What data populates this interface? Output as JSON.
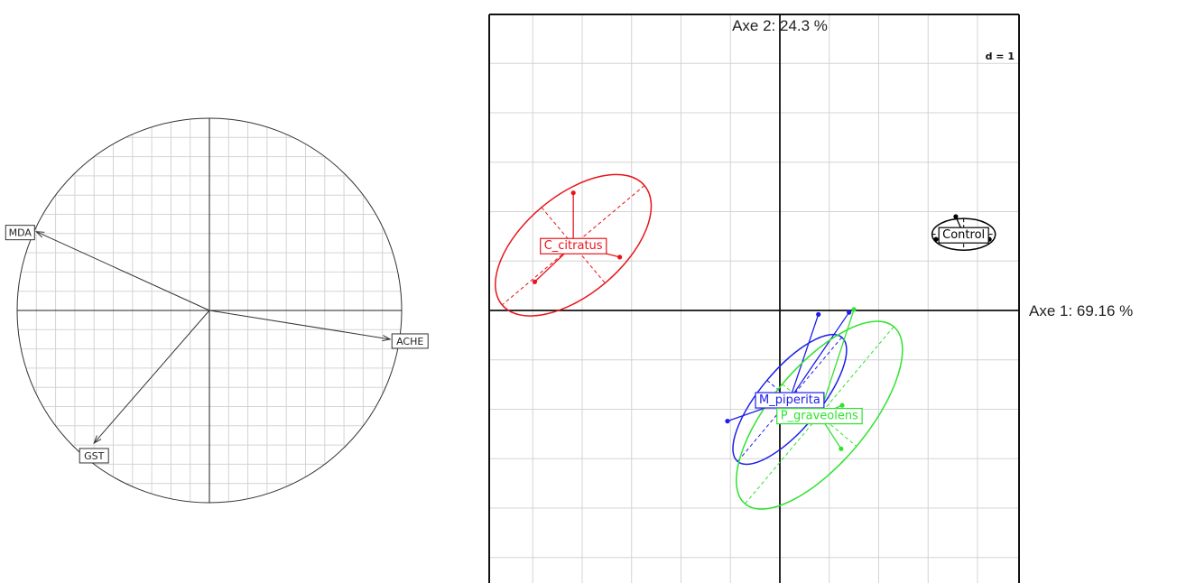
{
  "chart_data": [
    {
      "type": "correlation-circle",
      "grid": true,
      "variables": [
        {
          "name": "MDA",
          "x": -0.9,
          "y": 0.41
        },
        {
          "name": "ACHE",
          "x": 0.94,
          "y": -0.15
        },
        {
          "name": "GST",
          "x": -0.6,
          "y": -0.69
        }
      ]
    },
    {
      "type": "scatter",
      "scale_label": "d = 1",
      "xlabel": "Axe 1: 69.16 %",
      "ylabel": "Axe 2: 24.3 %",
      "grid": true,
      "xlim": [
        -2.9,
        2.4
      ],
      "ylim": [
        -2.7,
        2.6
      ],
      "groups": [
        {
          "name": "C_citratus",
          "color": "#e8141b",
          "center": [
            -2.09,
            0.66
          ],
          "ellipse": {
            "rx": 0.5,
            "ry": 0.94,
            "rotation_deg": 50
          },
          "points": [
            [
              -2.09,
              1.19
            ],
            [
              -1.62,
              0.54
            ],
            [
              -2.48,
              0.29
            ]
          ]
        },
        {
          "name": "Control",
          "color": "#000000",
          "center": [
            1.86,
            0.77
          ],
          "ellipse": {
            "rx": 0.32,
            "ry": 0.16,
            "rotation_deg": 0
          },
          "points": [
            [
              1.78,
              0.95
            ],
            [
              1.58,
              0.72
            ],
            [
              2.12,
              0.72
            ]
          ]
        },
        {
          "name": "M_piperita",
          "color": "#1e1eea",
          "center": [
            0.1,
            -0.9
          ],
          "ellipse": {
            "rx": 0.3,
            "ry": 0.82,
            "rotation_deg": 40
          },
          "points": [
            [
              0.39,
              -0.04
            ],
            [
              0.7,
              -0.02
            ],
            [
              -0.53,
              -1.12
            ]
          ]
        },
        {
          "name": "P_graveolens",
          "color": "#2ee32e",
          "center": [
            0.4,
            -1.06
          ],
          "ellipse": {
            "rx": 0.49,
            "ry": 1.17,
            "rotation_deg": 40
          },
          "points": [
            [
              0.75,
              0.01
            ],
            [
              0.63,
              -0.96
            ],
            [
              0.62,
              -1.4
            ]
          ]
        }
      ]
    }
  ]
}
